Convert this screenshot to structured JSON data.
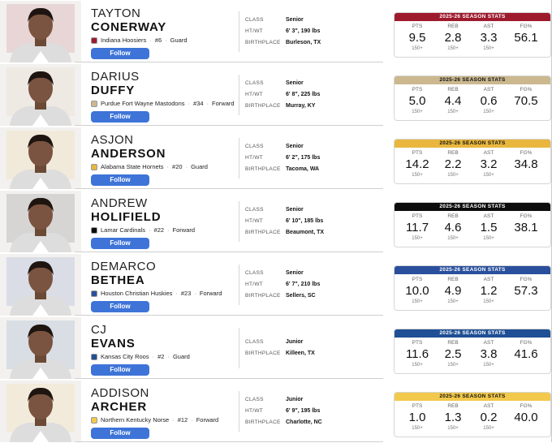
{
  "players": [
    {
      "first_name": "TAYTON",
      "last_name": "CONERWAY",
      "team": "Indiana Hoosiers",
      "number": "#6",
      "position": "Guard",
      "button": "Follow",
      "details": [
        {
          "label": "CLASS",
          "value": "Senior"
        },
        {
          "label": "HT/WT",
          "value": "6' 3\", 190 lbs"
        },
        {
          "label": "BIRTHPLACE",
          "value": "Burleson, TX"
        }
      ],
      "stats_title": "2025-26 SEASON STATS",
      "header_color": "#9e1b2d",
      "header_text_color": "#ffffff",
      "stats": [
        {
          "label": "PTS",
          "value": "9.5",
          "sub": "150+"
        },
        {
          "label": "REB",
          "value": "2.8",
          "sub": "150+"
        },
        {
          "label": "AST",
          "value": "3.3",
          "sub": "150+"
        },
        {
          "label": "FG%",
          "value": "56.1"
        }
      ]
    },
    {
      "first_name": "DARIUS",
      "last_name": "DUFFY",
      "team": "Purdue Fort Wayne Mastodons",
      "number": "#34",
      "position": "Forward",
      "button": "Follow",
      "details": [
        {
          "label": "CLASS",
          "value": "Senior"
        },
        {
          "label": "HT/WT",
          "value": "6' 8\", 225 lbs"
        },
        {
          "label": "BIRTHPLACE",
          "value": "Murray, KY"
        }
      ],
      "stats_title": "2025-26 SEASON STATS",
      "header_color": "#cbb88f",
      "header_text_color": "#111111",
      "stats": [
        {
          "label": "PTS",
          "value": "5.0",
          "sub": "150+"
        },
        {
          "label": "REB",
          "value": "4.4",
          "sub": "150+"
        },
        {
          "label": "AST",
          "value": "0.6",
          "sub": "150+"
        },
        {
          "label": "FG%",
          "value": "70.5"
        }
      ]
    },
    {
      "first_name": "ASJON",
      "last_name": "ANDERSON",
      "team": "Alabama State Hornets",
      "number": "#20",
      "position": "Guard",
      "button": "Follow",
      "details": [
        {
          "label": "CLASS",
          "value": "Senior"
        },
        {
          "label": "HT/WT",
          "value": "6' 2\", 175 lbs"
        },
        {
          "label": "BIRTHPLACE",
          "value": "Tacoma, WA"
        }
      ],
      "stats_title": "2025-26 SEASON STATS",
      "header_color": "#e9b73e",
      "header_text_color": "#111111",
      "stats": [
        {
          "label": "PTS",
          "value": "14.2",
          "sub": "150+"
        },
        {
          "label": "REB",
          "value": "2.2",
          "sub": "150+"
        },
        {
          "label": "AST",
          "value": "3.2",
          "sub": "150+"
        },
        {
          "label": "FG%",
          "value": "34.8"
        }
      ]
    },
    {
      "first_name": "ANDREW",
      "last_name": "HOLIFIELD",
      "team": "Lamar Cardinals",
      "number": "#22",
      "position": "Forward",
      "button": "Follow",
      "details": [
        {
          "label": "CLASS",
          "value": "Senior"
        },
        {
          "label": "HT/WT",
          "value": "6' 10\", 185 lbs"
        },
        {
          "label": "BIRTHPLACE",
          "value": "Beaumont, TX"
        }
      ],
      "stats_title": "2025-26 SEASON STATS",
      "header_color": "#0d0d0d",
      "header_text_color": "#ffffff",
      "stats": [
        {
          "label": "PTS",
          "value": "11.7",
          "sub": "150+"
        },
        {
          "label": "REB",
          "value": "4.6",
          "sub": "150+"
        },
        {
          "label": "AST",
          "value": "1.5",
          "sub": "150+"
        },
        {
          "label": "FG%",
          "value": "38.1"
        }
      ]
    },
    {
      "first_name": "DEMARCO",
      "last_name": "BETHEA",
      "team": "Houston Christian Huskies",
      "number": "#23",
      "position": "Forward",
      "button": "Follow",
      "details": [
        {
          "label": "CLASS",
          "value": "Senior"
        },
        {
          "label": "HT/WT",
          "value": "6' 7\", 210 lbs"
        },
        {
          "label": "BIRTHPLACE",
          "value": "Sellers, SC"
        }
      ],
      "stats_title": "2025-26 SEASON STATS",
      "header_color": "#2a4f9c",
      "header_text_color": "#ffffff",
      "stats": [
        {
          "label": "PTS",
          "value": "10.0",
          "sub": "150+"
        },
        {
          "label": "REB",
          "value": "4.9",
          "sub": "150+"
        },
        {
          "label": "AST",
          "value": "1.2",
          "sub": "150+"
        },
        {
          "label": "FG%",
          "value": "57.3"
        }
      ]
    },
    {
      "first_name": "CJ",
      "last_name": "EVANS",
      "team": "Kansas City Roos",
      "number": "#2",
      "position": "Guard",
      "button": "Follow",
      "details": [
        {
          "label": "CLASS",
          "value": "Junior"
        },
        {
          "label": "BIRTHPLACE",
          "value": "Killeen, TX"
        }
      ],
      "stats_title": "2025-26 SEASON STATS",
      "header_color": "#1f4f94",
      "header_text_color": "#ffffff",
      "stats": [
        {
          "label": "PTS",
          "value": "11.6",
          "sub": "150+"
        },
        {
          "label": "REB",
          "value": "2.5",
          "sub": "150+"
        },
        {
          "label": "AST",
          "value": "3.8",
          "sub": "150+"
        },
        {
          "label": "FG%",
          "value": "41.6"
        }
      ]
    },
    {
      "first_name": "ADDISON",
      "last_name": "ARCHER",
      "team": "Northern Kentucky Norse",
      "number": "#12",
      "position": "Forward",
      "button": "Follow",
      "details": [
        {
          "label": "CLASS",
          "value": "Junior"
        },
        {
          "label": "HT/WT",
          "value": "6' 9\", 195 lbs"
        },
        {
          "label": "BIRTHPLACE",
          "value": "Charlotte, NC"
        }
      ],
      "stats_title": "2025-26 SEASON STATS",
      "header_color": "#f2c94c",
      "header_text_color": "#111111",
      "stats": [
        {
          "label": "PTS",
          "value": "1.0",
          "sub": "150+"
        },
        {
          "label": "REB",
          "value": "1.3",
          "sub": "150+"
        },
        {
          "label": "AST",
          "value": "0.2",
          "sub": "150+"
        },
        {
          "label": "FG%",
          "value": "40.0"
        }
      ]
    }
  ]
}
